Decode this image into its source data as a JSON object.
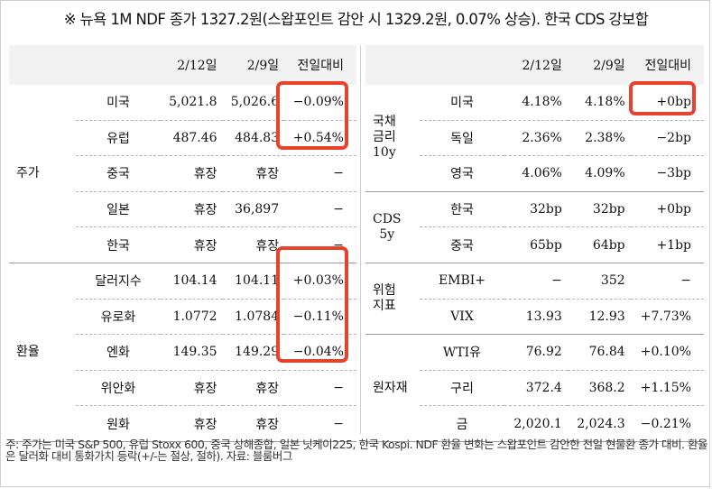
{
  "headline": "※ 뉴욕 1M NDF 종가 1327.2원(스왑포인트 감안 시 1329.2원, 0.07% 상승). 한국 CDS 강보합",
  "left": {
    "headers": [
      "",
      "",
      "2/12일",
      "2/9일",
      "전일대비"
    ],
    "groups": [
      {
        "label": "주가",
        "rows": [
          {
            "name": "미국",
            "a": "5,021.8",
            "b": "5,026.6",
            "chg": "−0.09%"
          },
          {
            "name": "유럽",
            "a": "487.46",
            "b": "484.83",
            "chg": "+0.54%"
          },
          {
            "name": "중국",
            "a": "휴장",
            "b": "휴장",
            "chg": "−"
          },
          {
            "name": "일본",
            "a": "휴장",
            "b": "36,897",
            "chg": "−"
          },
          {
            "name": "한국",
            "a": "휴장",
            "b": "휴장",
            "chg": "−"
          }
        ]
      },
      {
        "label": "환율",
        "rows": [
          {
            "name": "달러지수",
            "a": "104.14",
            "b": "104.11",
            "chg": "+0.03%"
          },
          {
            "name": "유로화",
            "a": "1.0772",
            "b": "1.0784",
            "chg": "−0.11%"
          },
          {
            "name": "엔화",
            "a": "149.35",
            "b": "149.29",
            "chg": "−0.04%"
          },
          {
            "name": "위안화",
            "a": "휴장",
            "b": "휴장",
            "chg": "−"
          },
          {
            "name": "원화",
            "a": "휴장",
            "b": "휴장",
            "chg": "−"
          }
        ]
      }
    ]
  },
  "right": {
    "headers": [
      "",
      "",
      "2/12일",
      "2/9일",
      "전일대비"
    ],
    "groups": [
      {
        "label": "국채\n금리\n10y",
        "rows": [
          {
            "name": "미국",
            "a": "4.18%",
            "b": "4.18%",
            "chg": "+0bp"
          },
          {
            "name": "독일",
            "a": "2.36%",
            "b": "2.38%",
            "chg": "−2bp"
          },
          {
            "name": "영국",
            "a": "4.06%",
            "b": "4.09%",
            "chg": "−3bp"
          }
        ]
      },
      {
        "label": "CDS\n5y",
        "rows": [
          {
            "name": "한국",
            "a": "32bp",
            "b": "32bp",
            "chg": "+0bp"
          },
          {
            "name": "중국",
            "a": "65bp",
            "b": "64bp",
            "chg": "+1bp"
          }
        ]
      },
      {
        "label": "위험\n지표",
        "rows": [
          {
            "name": "EMBI+",
            "a": "−",
            "b": "352",
            "chg": "−"
          },
          {
            "name": "VIX",
            "a": "13.93",
            "b": "12.93",
            "chg": "+7.73%"
          }
        ]
      },
      {
        "label": "원자재",
        "rows": [
          {
            "name": "WTI유",
            "a": "76.92",
            "b": "76.84",
            "chg": "+0.10%"
          },
          {
            "name": "구리",
            "a": "372.4",
            "b": "368.2",
            "chg": "+1.15%"
          },
          {
            "name": "금",
            "a": "2,020.1",
            "b": "2,024.3",
            "chg": "−0.21%"
          }
        ]
      }
    ]
  },
  "footnote": "주: 주가는 미국 S&P 500, 유럽 Stoxx 600, 중국 상해종합, 일본 닛케이225, 한국 Kospi. NDF 환율 변화는 스왑포인트 감안한 전일 현물환 종가 대비. 환율은 달러화 대비 통화가치 등락(+/-는 절상, 절하). 자료: 블룸버그",
  "colors": {
    "highlight": "#e8412c",
    "header_bg": "#f2f2f2"
  }
}
